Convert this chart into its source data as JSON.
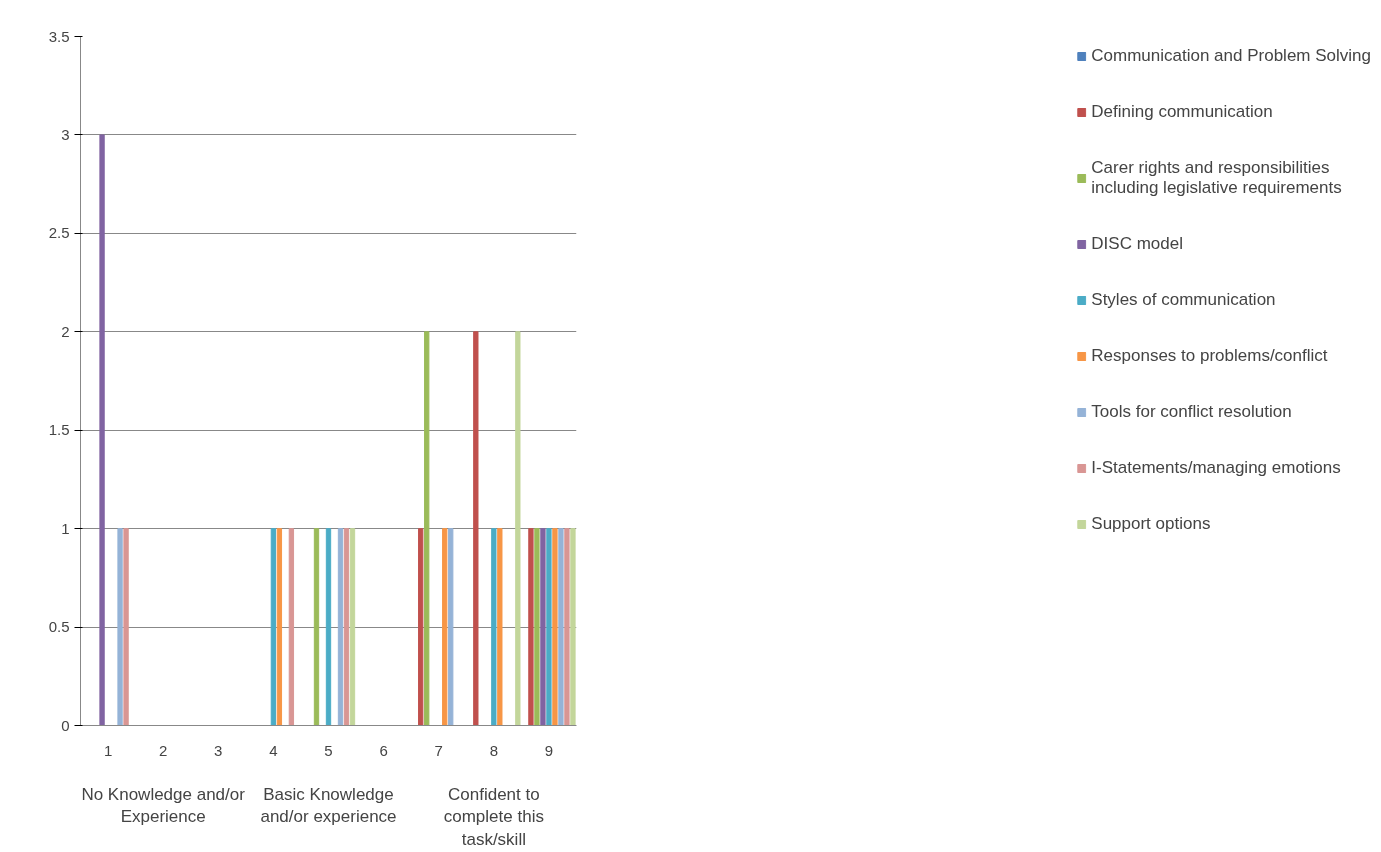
{
  "chart_data": {
    "type": "bar",
    "categories": [
      "1",
      "2",
      "3",
      "4",
      "5",
      "6",
      "7",
      "8",
      "9"
    ],
    "series": [
      {
        "name": "Communication and Problem Solving",
        "color": "#4f81bd",
        "values": [
          0,
          0,
          0,
          0,
          0,
          0,
          0,
          0,
          0
        ]
      },
      {
        "name": "Defining communication",
        "color": "#c0504d",
        "values": [
          0,
          0,
          0,
          0,
          0,
          0,
          1,
          2,
          1
        ]
      },
      {
        "name": "Carer rights and responsibilities including legislative requirements",
        "color": "#9bbb59",
        "values": [
          0,
          0,
          0,
          0,
          1,
          0,
          2,
          0,
          1
        ]
      },
      {
        "name": "DISC model",
        "color": "#8064a2",
        "values": [
          3,
          0,
          0,
          0,
          0,
          0,
          0,
          0,
          1
        ]
      },
      {
        "name": "Styles of communication",
        "color": "#4bacc6",
        "values": [
          0,
          0,
          0,
          1,
          1,
          0,
          0,
          1,
          1
        ]
      },
      {
        "name": "Responses to problems/conflict",
        "color": "#f79646",
        "values": [
          0,
          0,
          0,
          1,
          0,
          0,
          1,
          1,
          1
        ]
      },
      {
        "name": "Tools for conflict resolution",
        "color": "#95b3d7",
        "values": [
          1,
          0,
          0,
          0,
          1,
          0,
          1,
          0,
          1
        ]
      },
      {
        "name": "I-Statements/managing emotions",
        "color": "#d99694",
        "values": [
          1,
          0,
          0,
          1,
          1,
          0,
          0,
          0,
          1
        ]
      },
      {
        "name": "Support options",
        "color": "#c3d69b",
        "values": [
          0,
          0,
          0,
          0,
          1,
          0,
          0,
          2,
          1
        ]
      }
    ],
    "annotations": [
      "No Knowledge and/or Experience",
      "Basic Knowledge and/or experience",
      "Confident to complete this task/skill"
    ],
    "ylim": [
      0,
      3.5
    ],
    "yticks": [
      0,
      0.5,
      1,
      1.5,
      2,
      2.5,
      3,
      3.5
    ],
    "grid": "y",
    "legend": "right"
  }
}
